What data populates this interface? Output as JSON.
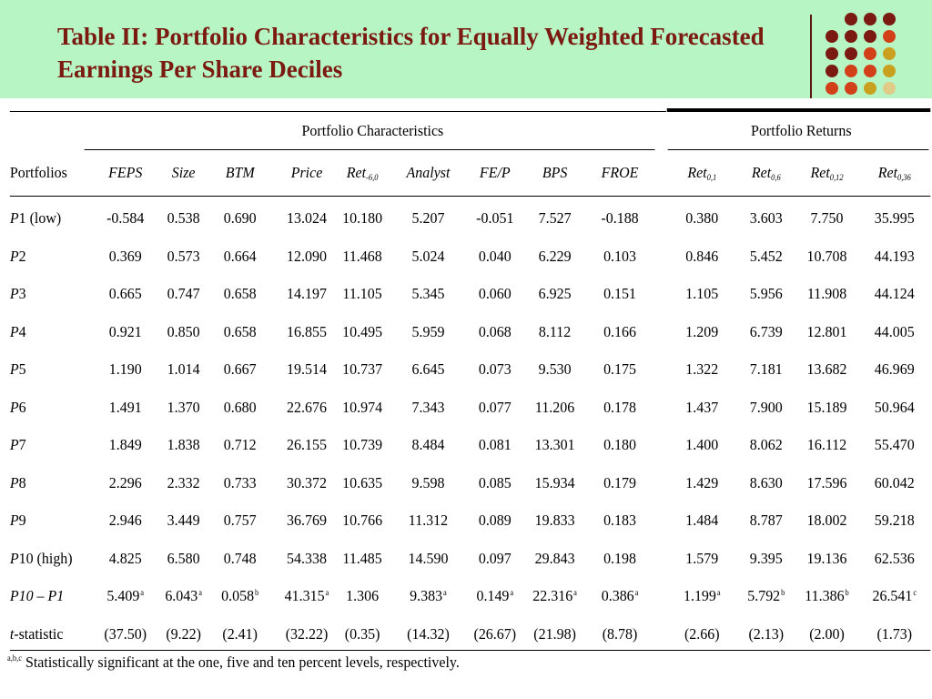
{
  "slide": {
    "title": "Table II: Portfolio Characteristics for Equally Weighted Forecasted Earnings Per Share Deciles"
  },
  "colors": {
    "header_band": "#b8f5c4",
    "title": "#7a1a10",
    "dot_dark": "#7a1a10",
    "dot_red": "#d2401a",
    "dot_gold": "#c9a020",
    "dot_tan": "#e0cc88"
  },
  "table": {
    "group_headers": {
      "characteristics": "Portfolio Characteristics",
      "returns": "Portfolio Returns"
    },
    "row_header_label": "Portfolios",
    "columns": [
      {
        "label": "FEPS",
        "sub": ""
      },
      {
        "label": "Size",
        "sub": ""
      },
      {
        "label": "BTM",
        "sub": ""
      },
      {
        "label": "Price",
        "sub": ""
      },
      {
        "label": "Ret",
        "sub": "-6,0"
      },
      {
        "label": "Analyst",
        "sub": ""
      },
      {
        "label": "FE/P",
        "sub": ""
      },
      {
        "label": "BPS",
        "sub": ""
      },
      {
        "label": "FROE",
        "sub": ""
      },
      {
        "label": "Ret",
        "sub": "0,1"
      },
      {
        "label": "Ret",
        "sub": "0,6"
      },
      {
        "label": "Ret",
        "sub": "0,12"
      },
      {
        "label": "Ret",
        "sub": "0,36"
      }
    ],
    "rows": [
      {
        "label_italic": "P",
        "label_rest": "1 (low)",
        "values": [
          "-0.584",
          "0.538",
          "0.690",
          "13.024",
          "10.180",
          "5.207",
          "-0.051",
          "7.527",
          "-0.188",
          "0.380",
          "3.603",
          "7.750",
          "35.995"
        ],
        "marks": []
      },
      {
        "label_italic": "P",
        "label_rest": "2",
        "values": [
          "0.369",
          "0.573",
          "0.664",
          "12.090",
          "11.468",
          "5.024",
          "0.040",
          "6.229",
          "0.103",
          "0.846",
          "5.452",
          "10.708",
          "44.193"
        ],
        "marks": []
      },
      {
        "label_italic": "P",
        "label_rest": "3",
        "values": [
          "0.665",
          "0.747",
          "0.658",
          "14.197",
          "11.105",
          "5.345",
          "0.060",
          "6.925",
          "0.151",
          "1.105",
          "5.956",
          "11.908",
          "44.124"
        ],
        "marks": []
      },
      {
        "label_italic": "P",
        "label_rest": "4",
        "values": [
          "0.921",
          "0.850",
          "0.658",
          "16.855",
          "10.495",
          "5.959",
          "0.068",
          "8.112",
          "0.166",
          "1.209",
          "6.739",
          "12.801",
          "44.005"
        ],
        "marks": []
      },
      {
        "label_italic": "P",
        "label_rest": "5",
        "values": [
          "1.190",
          "1.014",
          "0.667",
          "19.514",
          "10.737",
          "6.645",
          "0.073",
          "9.530",
          "0.175",
          "1.322",
          "7.181",
          "13.682",
          "46.969"
        ],
        "marks": []
      },
      {
        "label_italic": "P",
        "label_rest": "6",
        "values": [
          "1.491",
          "1.370",
          "0.680",
          "22.676",
          "10.974",
          "7.343",
          "0.077",
          "11.206",
          "0.178",
          "1.437",
          "7.900",
          "15.189",
          "50.964"
        ],
        "marks": []
      },
      {
        "label_italic": "P",
        "label_rest": "7",
        "values": [
          "1.849",
          "1.838",
          "0.712",
          "26.155",
          "10.739",
          "8.484",
          "0.081",
          "13.301",
          "0.180",
          "1.400",
          "8.062",
          "16.112",
          "55.470"
        ],
        "marks": []
      },
      {
        "label_italic": "P",
        "label_rest": "8",
        "values": [
          "2.296",
          "2.332",
          "0.733",
          "30.372",
          "10.635",
          "9.598",
          "0.085",
          "15.934",
          "0.179",
          "1.429",
          "8.630",
          "17.596",
          "60.042"
        ],
        "marks": []
      },
      {
        "label_italic": "P",
        "label_rest": "9",
        "values": [
          "2.946",
          "3.449",
          "0.757",
          "36.769",
          "10.766",
          "11.312",
          "0.089",
          "19.833",
          "0.183",
          "1.484",
          "8.787",
          "18.002",
          "59.218"
        ],
        "marks": []
      },
      {
        "label_italic": "P",
        "label_rest": "10 (high)",
        "values": [
          "4.825",
          "6.580",
          "0.748",
          "54.338",
          "11.485",
          "14.590",
          "0.097",
          "29.843",
          "0.198",
          "1.579",
          "9.395",
          "19.136",
          "62.536"
        ],
        "marks": []
      },
      {
        "label_italic": "P10 – P1",
        "label_rest": "",
        "values": [
          "5.409",
          "6.043",
          "0.058",
          "41.315",
          "1.306",
          "9.383",
          "0.149",
          "22.316",
          "0.386",
          "1.199",
          "5.792",
          "11.386",
          "26.541"
        ],
        "marks": [
          "a",
          "a",
          "b",
          "a",
          "",
          "a",
          "a",
          "a",
          "a",
          "a",
          "b",
          "b",
          "c"
        ]
      },
      {
        "label_italic": "t",
        "label_rest": "-statistic",
        "values": [
          "(37.50)",
          "(9.22)",
          "(2.41)",
          "(32.22)",
          "(0.35)",
          "(14.32)",
          "(26.67)",
          "(21.98)",
          "(8.78)",
          "(2.66)",
          "(2.13)",
          "(2.00)",
          "(1.73)"
        ],
        "marks": []
      }
    ],
    "footnote": {
      "marks": "a,b,c",
      "text": " Statistically significant at the one, five and ten percent levels, respectively."
    }
  }
}
